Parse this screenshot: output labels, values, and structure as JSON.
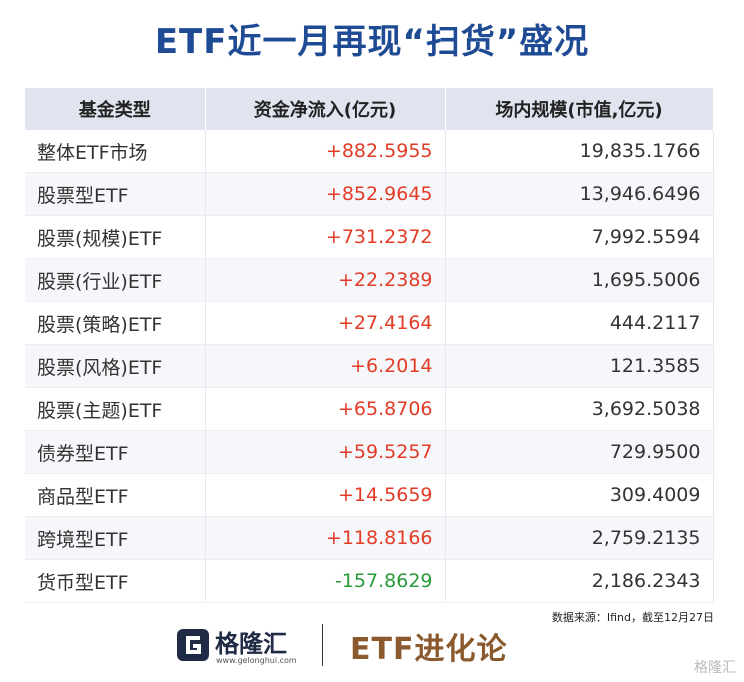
{
  "header": {
    "title": "ETF近一月再现“扫货”盛况"
  },
  "table": {
    "columns": [
      "基金类型",
      "资金净流入(亿元)",
      "场内规模(市值,亿元)"
    ],
    "rows": [
      [
        "整体ETF市场",
        "+882.5955",
        "19,835.1766"
      ],
      [
        "股票型ETF",
        "+852.9645",
        "13,946.6496"
      ],
      [
        "股票(规模)ETF",
        "+731.2372",
        "7,992.5594"
      ],
      [
        "股票(行业)ETF",
        "+22.2389",
        "1,695.5006"
      ],
      [
        "股票(策略)ETF",
        "+27.4164",
        "444.2117"
      ],
      [
        "股票(风格)ETF",
        "+6.2014",
        "121.3585"
      ],
      [
        "股票(主题)ETF",
        "+65.8706",
        "3,692.5038"
      ],
      [
        "债券型ETF",
        "+59.5257",
        "729.9500"
      ],
      [
        "商品型ETF",
        "+14.5659",
        "309.4009"
      ],
      [
        "跨境型ETF",
        "+118.8166",
        "2,759.2135"
      ],
      [
        "货币型ETF",
        "-157.8629",
        "2,186.2343"
      ]
    ]
  },
  "source": "数据来源：Ifind，截至12月27日",
  "footer": {
    "logo_name": "格隆汇",
    "logo_url": "www.gelonghui.com",
    "brand": "ETF进化论",
    "watermark": "格隆汇"
  }
}
